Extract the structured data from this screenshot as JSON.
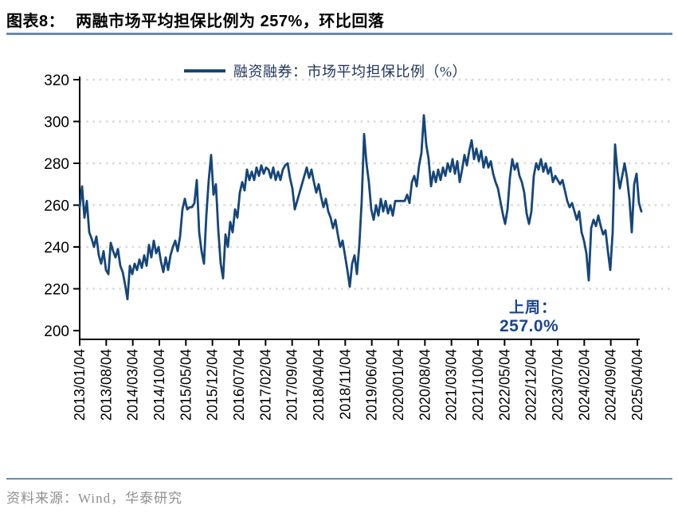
{
  "header": {
    "label": "图表8：",
    "title": "两融市场平均担保比例为 257%，环比回落"
  },
  "chart": {
    "legend": "融资融券：市场平均担保比例（%）",
    "annotation": {
      "line1": "上周：",
      "line2": "257.0%"
    }
  },
  "footer": {
    "source": "资料来源：Wind，华泰研究"
  },
  "colors": {
    "line": "#164679",
    "annotation": "#1a458f",
    "rule": "#6c8ca9",
    "grid": "#d9d9d9",
    "axis": "#000000"
  },
  "chart_data": {
    "type": "line",
    "title": "两融市场平均担保比例为 257%，环比回落",
    "legend_entries": [
      "融资融券：市场平均担保比例（%）"
    ],
    "legend_position": "top center",
    "grid": "horizontal dotted",
    "ylim": [
      200,
      320
    ],
    "y_ticks": [
      200,
      220,
      240,
      260,
      280,
      300,
      320
    ],
    "x_tick_labels": [
      "2013/01/04",
      "2013/08/04",
      "2014/03/04",
      "2014/10/04",
      "2015/05/04",
      "2015/12/04",
      "2016/07/04",
      "2017/02/04",
      "2017/09/04",
      "2018/04/04",
      "2018/11/04",
      "2019/06/04",
      "2020/01/04",
      "2020/08/04",
      "2021/03/04",
      "2021/10/04",
      "2022/05/04",
      "2022/12/04",
      "2023/07/04",
      "2024/02/04",
      "2024/09/04",
      "2025/04/04"
    ],
    "annotation": "上周：257.0%",
    "series": [
      {
        "name": "融资融券：市场平均担保比例（%）",
        "color": "#164679",
        "x_start": "2013/01/04",
        "x_end": "2025/04/04",
        "values": [
          259,
          269,
          254,
          262,
          247,
          244,
          240,
          245,
          236,
          232,
          238,
          229,
          227,
          242,
          238,
          235,
          239,
          231,
          228,
          222,
          215,
          231,
          227,
          232,
          229,
          234,
          230,
          236,
          231,
          241,
          235,
          243,
          237,
          240,
          233,
          228,
          235,
          229,
          236,
          240,
          243,
          238,
          245,
          258,
          263,
          258,
          259,
          259,
          261,
          272,
          247,
          238,
          232,
          255,
          272,
          284,
          265,
          270,
          248,
          232,
          225,
          246,
          240,
          252,
          247,
          258,
          254,
          266,
          271,
          267,
          277,
          272,
          276,
          272,
          278,
          274,
          279,
          275,
          278,
          277,
          273,
          278,
          272,
          276,
          272,
          277,
          279,
          280,
          273,
          268,
          258,
          262,
          266,
          270,
          274,
          278,
          273,
          277,
          271,
          266,
          270,
          264,
          259,
          263,
          257,
          254,
          249,
          253,
          246,
          240,
          243,
          236,
          229,
          221,
          232,
          236,
          227,
          241,
          262,
          294,
          280,
          271,
          258,
          253,
          260,
          255,
          263,
          257,
          262,
          256,
          260,
          255,
          262,
          262,
          262,
          262,
          262,
          265,
          261,
          271,
          274,
          269,
          279,
          285,
          303,
          289,
          282,
          269,
          276,
          271,
          277,
          272,
          278,
          274,
          280,
          276,
          282,
          275,
          281,
          271,
          277,
          284,
          279,
          286,
          291,
          282,
          287,
          281,
          286,
          278,
          283,
          278,
          281,
          275,
          271,
          268,
          262,
          256,
          251,
          258,
          273,
          282,
          277,
          280,
          274,
          271,
          266,
          256,
          251,
          257,
          274,
          280,
          277,
          282,
          276,
          280,
          275,
          278,
          271,
          274,
          272,
          270,
          272,
          267,
          262,
          259,
          261,
          257,
          253,
          257,
          247,
          243,
          237,
          224,
          249,
          253,
          250,
          255,
          250,
          246,
          248,
          238,
          229,
          247,
          289,
          276,
          268,
          274,
          280,
          273,
          263,
          247,
          270,
          275,
          261,
          257
        ]
      }
    ]
  }
}
